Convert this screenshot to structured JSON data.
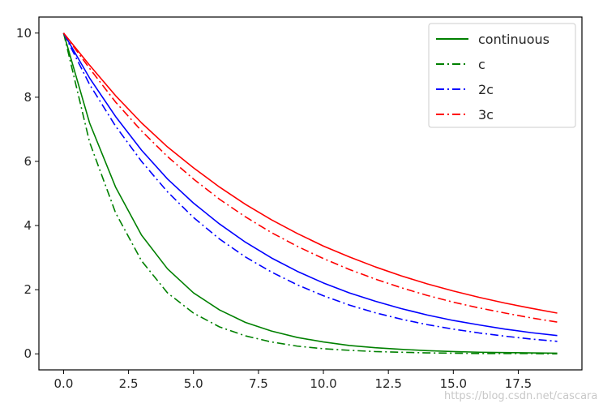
{
  "chart_data": {
    "type": "line",
    "title": "",
    "xlabel": "",
    "ylabel": "",
    "xlim": [
      -0.95,
      19.95
    ],
    "ylim": [
      -0.5,
      10.5
    ],
    "xticks": [
      0.0,
      2.5,
      5.0,
      7.5,
      10.0,
      12.5,
      15.0,
      17.5
    ],
    "xtick_labels": [
      "0.0",
      "2.5",
      "5.0",
      "7.5",
      "10.0",
      "12.5",
      "15.0",
      "17.5"
    ],
    "yticks": [
      0,
      2,
      4,
      6,
      8,
      10
    ],
    "ytick_labels": [
      "0",
      "2",
      "4",
      "6",
      "8",
      "10"
    ],
    "grid": false,
    "legend_position": "top-right",
    "x": [
      0,
      1,
      2,
      3,
      4,
      5,
      6,
      7,
      8,
      9,
      10,
      11,
      12,
      13,
      14,
      15,
      16,
      17,
      18,
      19
    ],
    "series": [
      {
        "name": "continuous",
        "color": "#008000",
        "style": "solid",
        "values": [
          10.0,
          7.2,
          5.2,
          3.7,
          2.65,
          1.9,
          1.37,
          0.98,
          0.71,
          0.51,
          0.37,
          0.26,
          0.19,
          0.14,
          0.1,
          0.07,
          0.05,
          0.04,
          0.03,
          0.02
        ]
      },
      {
        "name": "c",
        "color": "#008000",
        "style": "dashdot",
        "values": [
          10.0,
          6.6,
          4.4,
          2.9,
          1.9,
          1.27,
          0.84,
          0.56,
          0.37,
          0.24,
          0.16,
          0.11,
          0.07,
          0.05,
          0.03,
          0.02,
          0.01,
          0.01,
          0.01,
          0.0
        ]
      },
      {
        "name": "2c",
        "color": "#0000ff",
        "style": "dashdot",
        "values": [
          10.0,
          8.4,
          7.1,
          6.0,
          5.05,
          4.25,
          3.58,
          3.02,
          2.55,
          2.15,
          1.81,
          1.52,
          1.28,
          1.08,
          0.91,
          0.77,
          0.65,
          0.55,
          0.46,
          0.39
        ]
      },
      {
        "name": "3c",
        "color": "#ff0000",
        "style": "dashdot",
        "values": [
          10.0,
          8.9,
          7.85,
          6.95,
          6.15,
          5.45,
          4.82,
          4.27,
          3.78,
          3.35,
          2.97,
          2.63,
          2.33,
          2.06,
          1.82,
          1.61,
          1.43,
          1.27,
          1.12,
          0.99
        ]
      }
    ],
    "extra_lines": [
      {
        "color": "#0000ff",
        "style": "solid",
        "values": [
          10.0,
          8.6,
          7.4,
          6.35,
          5.45,
          4.7,
          4.05,
          3.48,
          2.99,
          2.57,
          2.21,
          1.9,
          1.64,
          1.41,
          1.21,
          1.04,
          0.9,
          0.77,
          0.66,
          0.57
        ]
      },
      {
        "color": "#ff0000",
        "style": "solid",
        "values": [
          10.0,
          9.0,
          8.05,
          7.2,
          6.45,
          5.8,
          5.2,
          4.66,
          4.18,
          3.75,
          3.36,
          3.02,
          2.71,
          2.43,
          2.18,
          1.96,
          1.76,
          1.58,
          1.42,
          1.27
        ]
      }
    ]
  },
  "watermark": "https://blog.csdn.net/cascara"
}
